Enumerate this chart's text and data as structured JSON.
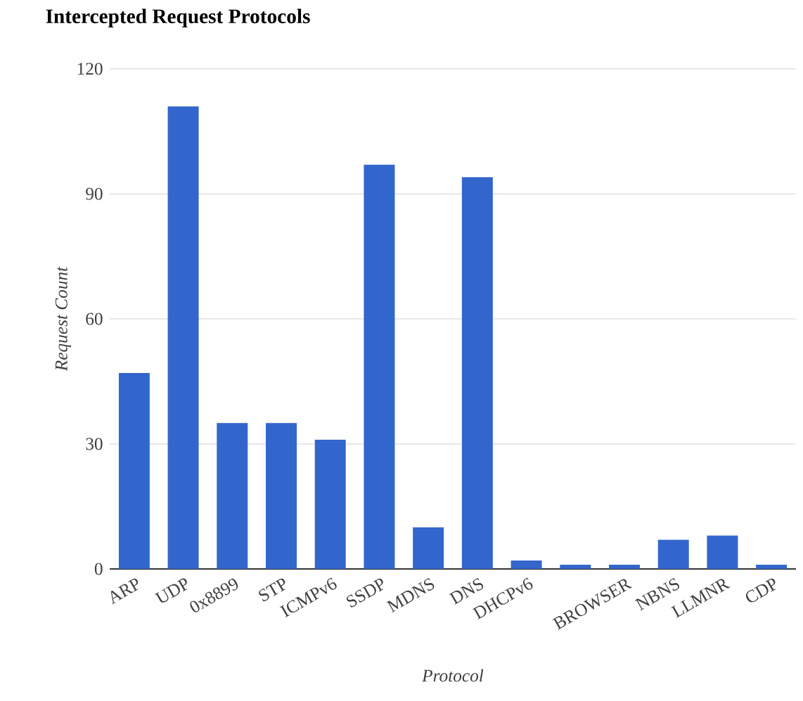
{
  "chart_data": {
    "type": "bar",
    "title": "Intercepted Request Protocols",
    "xlabel": "Protocol",
    "ylabel": "Request Count",
    "categories": [
      "ARP",
      "UDP",
      "0x8899",
      "STP",
      "ICMPv6",
      "SSDP",
      "MDNS",
      "DNS",
      "DHCPv6",
      null,
      "BROWSER",
      "NBNS",
      "LLMNR",
      "CDP"
    ],
    "values": [
      47,
      111,
      35,
      35,
      31,
      97,
      10,
      94,
      2,
      1,
      1,
      7,
      8,
      1
    ],
    "color": "#3366cc",
    "ylim": [
      0,
      120
    ],
    "yticks": [
      0,
      30,
      60,
      90,
      120
    ],
    "grid": "y"
  }
}
